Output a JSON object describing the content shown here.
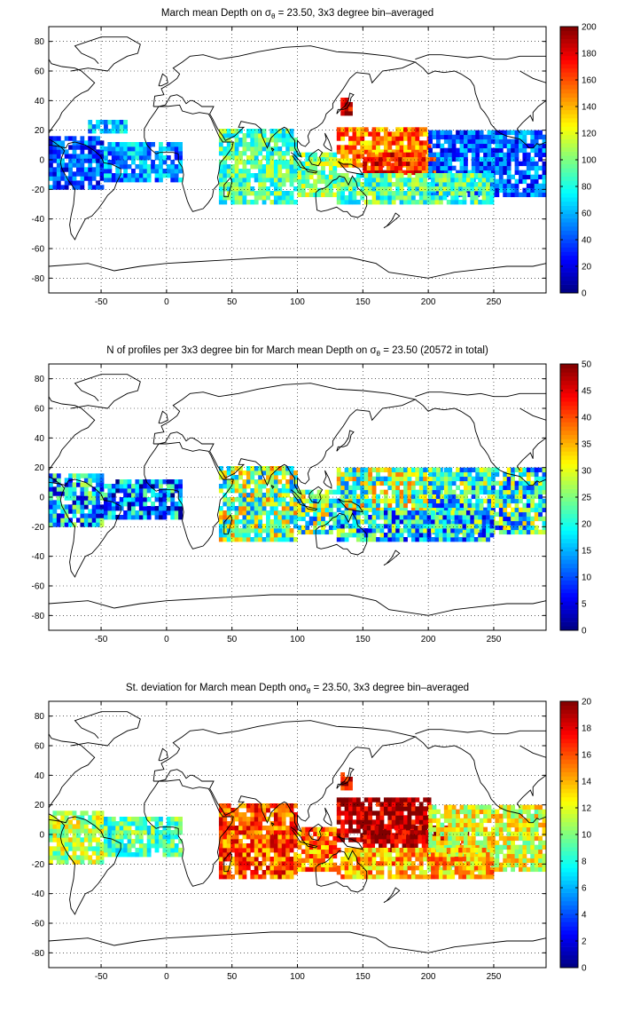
{
  "chart_data": [
    {
      "type": "heatmap",
      "title_parts": [
        "March mean Depth on ",
        "σ",
        "θ",
        " = 23.50, 3x3 degree bin–averaged"
      ],
      "xticks": [
        "-50",
        "0",
        "50",
        "100",
        "150",
        "200",
        "250"
      ],
      "xtick_values": [
        -50,
        0,
        50,
        100,
        150,
        200,
        250
      ],
      "yticks": [
        "80",
        "60",
        "40",
        "20",
        "0",
        "-20",
        "-40",
        "-60",
        "-80"
      ],
      "ytick_values": [
        80,
        60,
        40,
        20,
        0,
        -20,
        -40,
        -60,
        -80
      ],
      "xlim": [
        -90,
        290
      ],
      "ylim": [
        -90,
        90
      ],
      "clim": [
        0,
        200
      ],
      "colorbar_ticks": [
        "200",
        "180",
        "160",
        "140",
        "120",
        "100",
        "80",
        "60",
        "40",
        "20",
        "0"
      ],
      "colorbar_values": [
        200,
        180,
        160,
        140,
        120,
        100,
        80,
        60,
        40,
        20,
        0
      ],
      "grid": true,
      "colormap": "jet",
      "regions": [
        {
          "lon": [
            -90,
            -48
          ],
          "lat": [
            -20,
            15
          ],
          "level": 0.2
        },
        {
          "lon": [
            -48,
            10
          ],
          "lat": [
            -15,
            10
          ],
          "level": 0.28
        },
        {
          "lon": [
            -60,
            -30
          ],
          "lat": [
            18,
            25
          ],
          "level": 0.3
        },
        {
          "lon": [
            40,
            100
          ],
          "lat": [
            -30,
            20
          ],
          "level": 0.45
        },
        {
          "lon": [
            100,
            130
          ],
          "lat": [
            -25,
            5
          ],
          "level": 0.5
        },
        {
          "lon": [
            130,
            200
          ],
          "lat": [
            -5,
            20
          ],
          "level": 0.75
        },
        {
          "lon": [
            150,
            210
          ],
          "lat": [
            -10,
            5
          ],
          "level": 0.85
        },
        {
          "lon": [
            200,
            290
          ],
          "lat": [
            -25,
            20
          ],
          "level": 0.22
        },
        {
          "lon": [
            130,
            250
          ],
          "lat": [
            -30,
            -10
          ],
          "level": 0.45
        },
        {
          "lon": [
            133,
            140
          ],
          "lat": [
            30,
            40
          ],
          "level": 0.92
        }
      ]
    },
    {
      "type": "heatmap",
      "title_parts": [
        "N of profiles per 3x3 degree bin for March mean Depth on ",
        "σ",
        "θ",
        " = 23.50 (20572 in total)"
      ],
      "xticks": [
        "-50",
        "0",
        "50",
        "100",
        "150",
        "200",
        "250"
      ],
      "xtick_values": [
        -50,
        0,
        50,
        100,
        150,
        200,
        250
      ],
      "yticks": [
        "80",
        "60",
        "40",
        "20",
        "0",
        "-20",
        "-40",
        "-60",
        "-80"
      ],
      "ytick_values": [
        80,
        60,
        40,
        20,
        0,
        -20,
        -40,
        -60,
        -80
      ],
      "xlim": [
        -90,
        290
      ],
      "ylim": [
        -90,
        90
      ],
      "clim": [
        0,
        50
      ],
      "colorbar_ticks": [
        "50",
        "45",
        "40",
        "35",
        "30",
        "25",
        "20",
        "15",
        "10",
        "5",
        "0"
      ],
      "colorbar_values": [
        50,
        45,
        40,
        35,
        30,
        25,
        20,
        15,
        10,
        5,
        0
      ],
      "grid": true,
      "colormap": "jet",
      "regions": [
        {
          "lon": [
            -90,
            -48
          ],
          "lat": [
            -20,
            15
          ],
          "level": 0.3
        },
        {
          "lon": [
            -48,
            10
          ],
          "lat": [
            -15,
            10
          ],
          "level": 0.25
        },
        {
          "lon": [
            40,
            100
          ],
          "lat": [
            -30,
            20
          ],
          "level": 0.5
        },
        {
          "lon": [
            100,
            130
          ],
          "lat": [
            -25,
            5
          ],
          "level": 0.45
        },
        {
          "lon": [
            130,
            210
          ],
          "lat": [
            -10,
            20
          ],
          "level": 0.5
        },
        {
          "lon": [
            200,
            290
          ],
          "lat": [
            -25,
            20
          ],
          "level": 0.4
        },
        {
          "lon": [
            130,
            250
          ],
          "lat": [
            -30,
            -10
          ],
          "level": 0.35
        }
      ]
    },
    {
      "type": "heatmap",
      "title_parts": [
        "St. deviation for March mean Depth on",
        "σ",
        "θ",
        " = 23.50, 3x3 degree bin–averaged"
      ],
      "xticks": [
        "-50",
        "0",
        "50",
        "100",
        "150",
        "200",
        "250"
      ],
      "xtick_values": [
        -50,
        0,
        50,
        100,
        150,
        200,
        250
      ],
      "yticks": [
        "80",
        "60",
        "40",
        "20",
        "0",
        "-20",
        "-40",
        "-60",
        "-80"
      ],
      "ytick_values": [
        80,
        60,
        40,
        20,
        0,
        -20,
        -40,
        -60,
        -80
      ],
      "xlim": [
        -90,
        290
      ],
      "ylim": [
        -90,
        90
      ],
      "clim": [
        0,
        20
      ],
      "colorbar_ticks": [
        "20",
        "18",
        "16",
        "14",
        "12",
        "10",
        "8",
        "6",
        "4",
        "2",
        "0"
      ],
      "colorbar_values": [
        20,
        18,
        16,
        14,
        12,
        10,
        8,
        6,
        4,
        2,
        0
      ],
      "grid": true,
      "colormap": "jet",
      "regions": [
        {
          "lon": [
            -90,
            -48
          ],
          "lat": [
            -20,
            15
          ],
          "level": 0.55
        },
        {
          "lon": [
            -48,
            10
          ],
          "lat": [
            -15,
            10
          ],
          "level": 0.45
        },
        {
          "lon": [
            40,
            100
          ],
          "lat": [
            -30,
            20
          ],
          "level": 0.8
        },
        {
          "lon": [
            100,
            130
          ],
          "lat": [
            -25,
            5
          ],
          "level": 0.75
        },
        {
          "lon": [
            130,
            200
          ],
          "lat": [
            -5,
            25
          ],
          "level": 0.95
        },
        {
          "lon": [
            150,
            230
          ],
          "lat": [
            -15,
            5
          ],
          "level": 0.95
        },
        {
          "lon": [
            200,
            290
          ],
          "lat": [
            -25,
            20
          ],
          "level": 0.6
        },
        {
          "lon": [
            130,
            250
          ],
          "lat": [
            -30,
            -10
          ],
          "level": 0.7
        },
        {
          "lon": [
            133,
            140
          ],
          "lat": [
            30,
            40
          ],
          "level": 0.92
        }
      ]
    }
  ]
}
